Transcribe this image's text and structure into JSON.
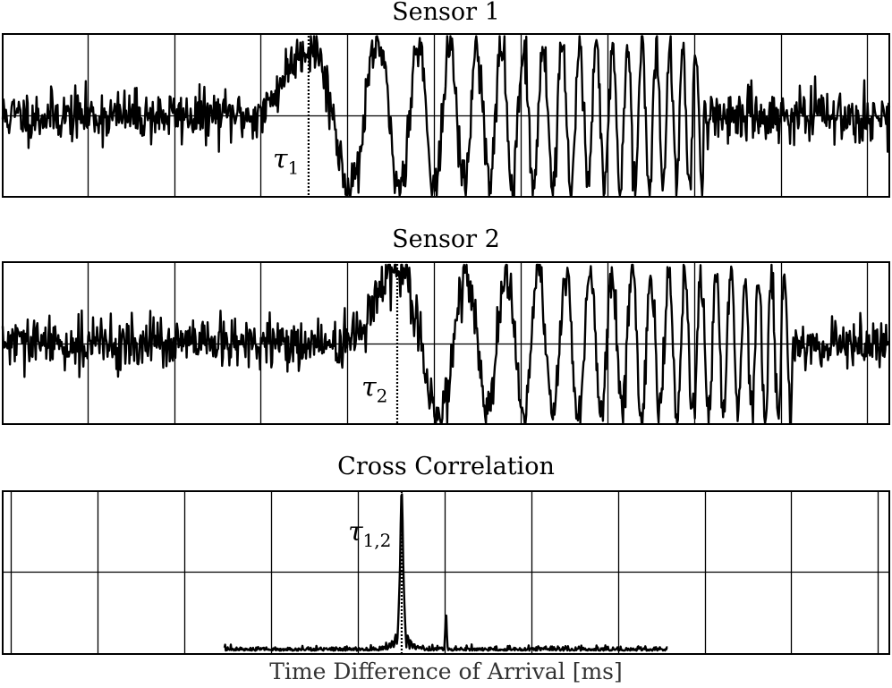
{
  "chart_data": [
    {
      "type": "line",
      "title": "Sensor 1",
      "annotation": {
        "label": "τ",
        "subscript": "1",
        "at": 0.345
      },
      "grid": true,
      "signal": {
        "seed": 11,
        "chirp_start": 0.29,
        "chirp_end": 0.79,
        "rise_peak": 0.345,
        "cycles_start": 3.2,
        "cycles_end": 32
      }
    },
    {
      "type": "line",
      "title": "Sensor 2",
      "annotation": {
        "label": "τ",
        "subscript": "2",
        "at": 0.445
      },
      "grid": true,
      "signal": {
        "seed": 29,
        "chirp_start": 0.39,
        "chirp_end": 0.89,
        "rise_peak": 0.445,
        "cycles_start": 3.2,
        "cycles_end": 32
      }
    },
    {
      "type": "line",
      "title": "Cross Correlation",
      "xlabel": "Time Difference of Arrival [ms]",
      "annotation": {
        "label": "τ",
        "subscript": "1,2",
        "at": 0.45
      },
      "grid": true,
      "signal": {
        "seed": 47,
        "support_start": 0.25,
        "support_end": 0.75,
        "peak_at": 0.45,
        "peak_height": 0.88,
        "secondary_at": 0.5,
        "secondary_height": 0.22
      }
    }
  ]
}
